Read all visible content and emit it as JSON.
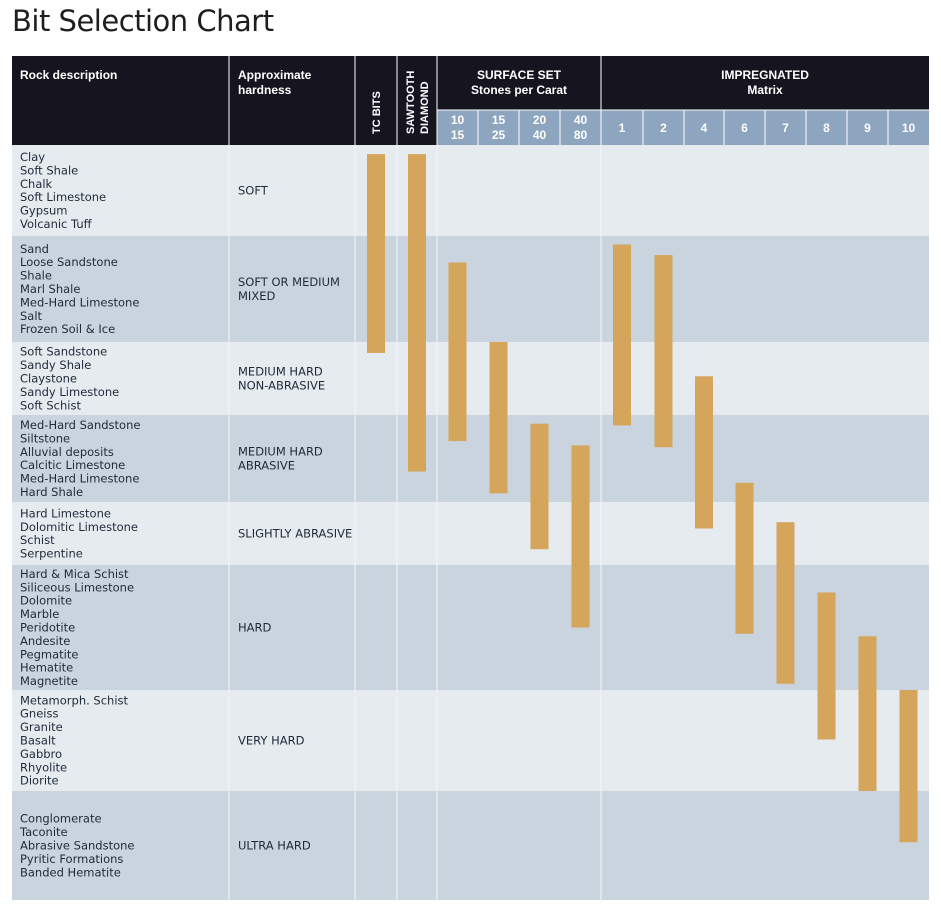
{
  "title": "Bit Selection Chart",
  "colors": {
    "header_bg": "#16151f",
    "subheader_bg": "#8da5be",
    "row_light": "#e6ebf0",
    "row_dark": "#c9d4de",
    "bar": "#d4a55a",
    "separator": "#ffffff"
  },
  "chart_data": {
    "type": "table",
    "headers": {
      "rock_description": "Rock description",
      "hardness": [
        "Approximate",
        "hardness"
      ],
      "tc_bits": "TC BITS",
      "sawtooth": [
        "SAWTOOTH",
        "DIAMOND"
      ],
      "surface_set": [
        "SURFACE SET",
        "Stones per Carat"
      ],
      "impregnated": [
        "IMPREGNATED",
        "Matrix"
      ]
    },
    "surface_set_ranges": [
      [
        "10",
        "15"
      ],
      [
        "15",
        "25"
      ],
      [
        "20",
        "40"
      ],
      [
        "40",
        "80"
      ]
    ],
    "impregnated_matrix": [
      "1",
      "2",
      "4",
      "6",
      "7",
      "8",
      "9",
      "10"
    ],
    "rows": [
      {
        "hardness": [
          "SOFT"
        ],
        "rocks": [
          "Clay",
          "Soft Shale",
          "Chalk",
          "Soft Limestone",
          "Gypsum",
          "Volcanic Tuff"
        ]
      },
      {
        "hardness": [
          "SOFT OR MEDIUM",
          "MIXED"
        ],
        "rocks": [
          "Sand",
          "Loose Sandstone",
          "Shale",
          "Marl Shale",
          "Med-Hard Limestone",
          "Salt",
          "Frozen Soil & Ice"
        ]
      },
      {
        "hardness": [
          "MEDIUM HARD",
          "NON-ABRASIVE"
        ],
        "rocks": [
          "Soft Sandstone",
          "Sandy Shale",
          "Claystone",
          "Sandy Limestone",
          "Soft Schist"
        ]
      },
      {
        "hardness": [
          "MEDIUM HARD",
          "ABRASIVE"
        ],
        "rocks": [
          "Med-Hard Sandstone",
          "Siltstone",
          "Alluvial deposits",
          "Calcitic Limestone",
          "Med-Hard Limestone",
          "Hard Shale"
        ]
      },
      {
        "hardness": [
          "SLIGHTLY ABRASIVE"
        ],
        "rocks": [
          "Hard Limestone",
          "Dolomitic Limestone",
          "Schist",
          "Serpentine"
        ]
      },
      {
        "hardness": [
          "HARD"
        ],
        "rocks": [
          "Hard & Mica Schist",
          "Siliceous Limestone",
          "Dolomite",
          "Marble",
          "Peridotite",
          "Andesite",
          "Pegmatite",
          "Hematite",
          "Magnetite"
        ]
      },
      {
        "hardness": [
          "VERY HARD"
        ],
        "rocks": [
          "Metamorph. Schist",
          "Gneiss",
          "Granite",
          "Basalt",
          "Gabbro",
          "Rhyolite",
          "Diorite"
        ]
      },
      {
        "hardness": [
          "ULTRA HARD"
        ],
        "rocks": [
          "Conglomerate",
          "Taconite",
          "Abrasive Sandstone",
          "Pyritic Formations",
          "Banded Hematite"
        ]
      }
    ],
    "bars_row_units": [
      {
        "column": "TC BITS",
        "start": 0.1,
        "end": 2.15
      },
      {
        "column": "SAWTOOTH DIAMOND",
        "start": 0.1,
        "end": 3.65
      },
      {
        "column": "SURFACE SET 10-15",
        "start": 1.25,
        "end": 3.3
      },
      {
        "column": "SURFACE SET 15-25",
        "start": 2.0,
        "end": 3.9
      },
      {
        "column": "SURFACE SET 20-40",
        "start": 3.1,
        "end": 4.75
      },
      {
        "column": "SURFACE SET 40-80",
        "start": 3.35,
        "end": 5.5
      },
      {
        "column": "IMPREGNATED 1",
        "start": 1.08,
        "end": 3.12
      },
      {
        "column": "IMPREGNATED 2",
        "start": 1.18,
        "end": 3.37
      },
      {
        "column": "IMPREGNATED 4",
        "start": 2.47,
        "end": 4.42
      },
      {
        "column": "IMPREGNATED 6",
        "start": 3.78,
        "end": 5.55
      },
      {
        "column": "IMPREGNATED 7",
        "start": 4.32,
        "end": 5.95
      },
      {
        "column": "IMPREGNATED 8",
        "start": 5.22,
        "end": 6.49
      },
      {
        "column": "IMPREGNATED 9",
        "start": 5.57,
        "end": 7.0
      },
      {
        "column": "IMPREGNATED 10",
        "start": 6.0,
        "end": 7.47
      }
    ]
  }
}
